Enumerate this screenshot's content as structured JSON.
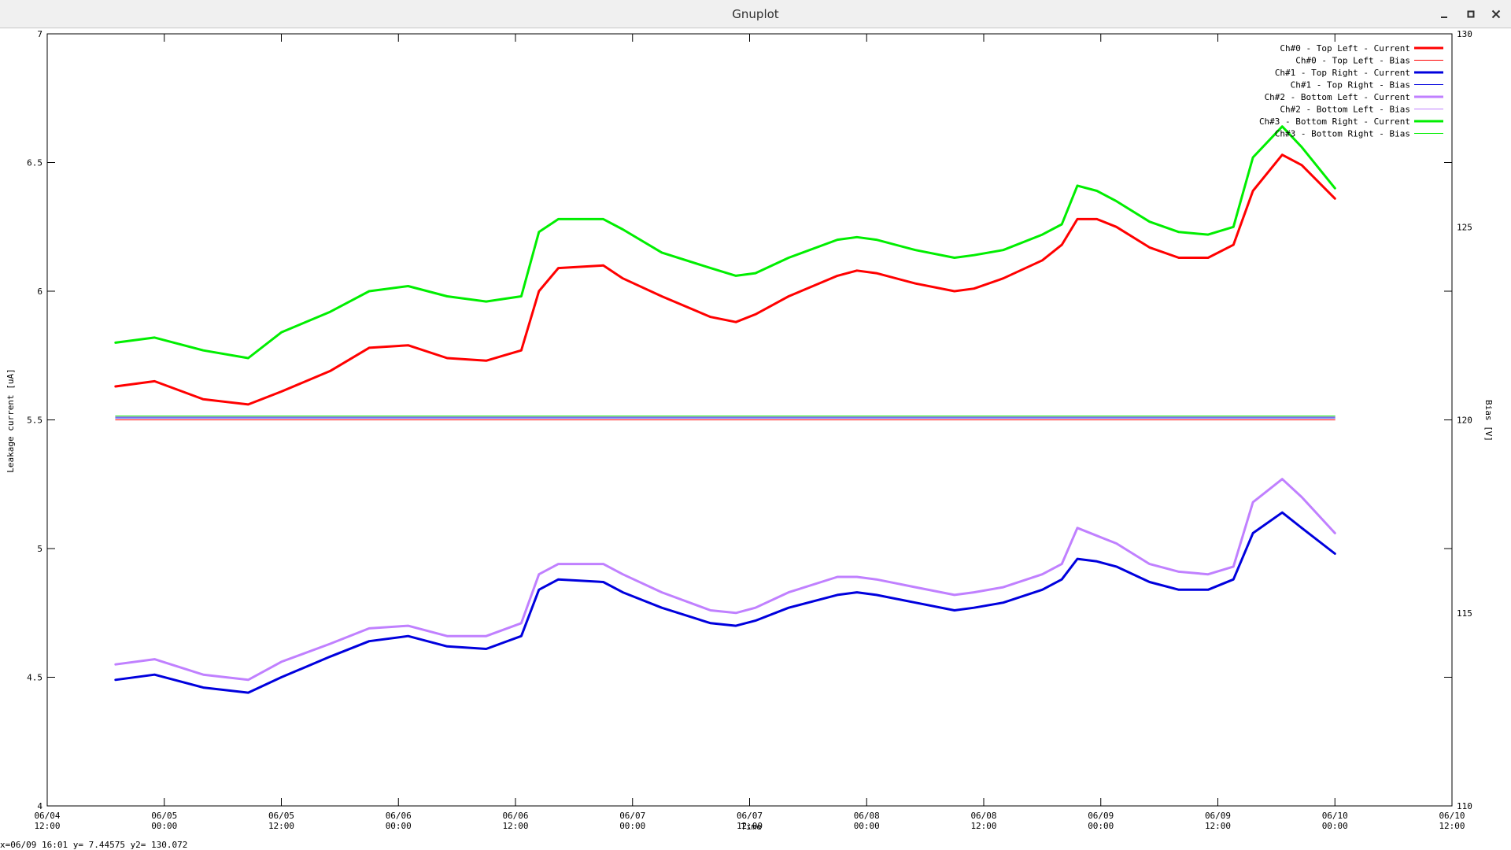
{
  "window": {
    "title": "Gnuplot",
    "minimize_icon": "minimize-icon",
    "maximize_icon": "maximize-icon",
    "close_icon": "close-icon"
  },
  "status": "x=06/09 16:01 y= 7.44575 y2= 130.072",
  "chart_data": {
    "type": "line",
    "xlabel": "Time",
    "ylabel": "Leakage current [uA]",
    "y2label": "Bias [V]",
    "xlim": [
      0,
      72
    ],
    "x_unit_note": "hours",
    "ylim": [
      4,
      7
    ],
    "y2lim": [
      110,
      130
    ],
    "grid": false,
    "legend_position": "top-right",
    "x_ticks": [
      {
        "x": 0,
        "label": [
          "06/04",
          "12:00"
        ]
      },
      {
        "x": 6,
        "label": [
          "06/05",
          "00:00"
        ]
      },
      {
        "x": 12,
        "label": [
          "06/05",
          "12:00"
        ]
      },
      {
        "x": 18,
        "label": [
          "06/06",
          "00:00"
        ]
      },
      {
        "x": 24,
        "label": [
          "06/06",
          "12:00"
        ]
      },
      {
        "x": 30,
        "label": [
          "06/07",
          "00:00"
        ]
      },
      {
        "x": 36,
        "label": [
          "06/07",
          "12:00"
        ]
      },
      {
        "x": 42,
        "label": [
          "06/08",
          "00:00"
        ]
      },
      {
        "x": 48,
        "label": [
          "06/08",
          "12:00"
        ]
      },
      {
        "x": 54,
        "label": [
          "06/09",
          "00:00"
        ]
      },
      {
        "x": 60,
        "label": [
          "06/09",
          "12:00"
        ]
      },
      {
        "x": 66,
        "label": [
          "06/10",
          "00:00"
        ]
      },
      {
        "x": 72,
        "label": [
          "06/10",
          "12:00"
        ]
      }
    ],
    "y_ticks": [
      {
        "v": 4,
        "label": "4"
      },
      {
        "v": 4.5,
        "label": "4.5"
      },
      {
        "v": 5,
        "label": "5"
      },
      {
        "v": 5.5,
        "label": "5.5"
      },
      {
        "v": 6,
        "label": "6"
      },
      {
        "v": 6.5,
        "label": "6.5"
      },
      {
        "v": 7,
        "label": "7"
      }
    ],
    "y2_ticks": [
      {
        "v": 110,
        "label": "110"
      },
      {
        "v": 115,
        "label": "115"
      },
      {
        "v": 120,
        "label": "120"
      },
      {
        "v": 125,
        "label": "125"
      },
      {
        "v": 130,
        "label": "130"
      }
    ],
    "series": [
      {
        "name": "Ch#0 - Top Left - Current",
        "color": "#ff0000",
        "width": 3,
        "axis": "y",
        "x": [
          3.5,
          5.5,
          8.0,
          10.3,
          12.0,
          14.5,
          16.5,
          18.5,
          20.5,
          22.5,
          24.3,
          25.2,
          26.2,
          28.5,
          29.5,
          31.5,
          34.0,
          35.3,
          36.3,
          38.0,
          40.5,
          41.5,
          42.5,
          44.5,
          46.5,
          47.5,
          49.0,
          51.0,
          52.0,
          52.8,
          53.8,
          54.8,
          56.5,
          58.0,
          59.5,
          60.8,
          61.8,
          63.3,
          64.3,
          66.0
        ],
        "y": [
          5.63,
          5.65,
          5.58,
          5.56,
          5.61,
          5.69,
          5.78,
          5.79,
          5.74,
          5.73,
          5.77,
          6.0,
          6.09,
          6.1,
          6.05,
          5.98,
          5.9,
          5.88,
          5.91,
          5.98,
          6.06,
          6.08,
          6.07,
          6.03,
          6.0,
          6.01,
          6.05,
          6.12,
          6.18,
          6.28,
          6.28,
          6.25,
          6.17,
          6.13,
          6.13,
          6.18,
          6.39,
          6.53,
          6.49,
          6.36
        ]
      },
      {
        "name": "Ch#0 - Top Left - Bias",
        "color": "#ff0000",
        "width": 1,
        "axis": "y2",
        "x": [
          3.5,
          66.0
        ],
        "y": [
          120.0,
          120.0
        ]
      },
      {
        "name": "Ch#1 - Top Right - Current",
        "color": "#0000dd",
        "width": 3,
        "axis": "y",
        "x": [
          3.5,
          5.5,
          8.0,
          10.3,
          12.0,
          14.5,
          16.5,
          18.5,
          20.5,
          22.5,
          24.3,
          25.2,
          26.2,
          28.5,
          29.5,
          31.5,
          34.0,
          35.3,
          36.3,
          38.0,
          40.5,
          41.5,
          42.5,
          44.5,
          46.5,
          47.5,
          49.0,
          51.0,
          52.0,
          52.8,
          53.8,
          54.8,
          56.5,
          58.0,
          59.5,
          60.8,
          61.8,
          63.3,
          64.3,
          66.0
        ],
        "y": [
          4.49,
          4.51,
          4.46,
          4.44,
          4.5,
          4.58,
          4.64,
          4.66,
          4.62,
          4.61,
          4.66,
          4.84,
          4.88,
          4.87,
          4.83,
          4.77,
          4.71,
          4.7,
          4.72,
          4.77,
          4.82,
          4.83,
          4.82,
          4.79,
          4.76,
          4.77,
          4.79,
          4.84,
          4.88,
          4.96,
          4.95,
          4.93,
          4.87,
          4.84,
          4.84,
          4.88,
          5.06,
          5.14,
          5.08,
          4.98
        ]
      },
      {
        "name": "Ch#1 - Top Right - Bias",
        "color": "#0000dd",
        "width": 1,
        "axis": "y2",
        "x": [
          3.5,
          66.0
        ],
        "y": [
          120.05,
          120.05
        ]
      },
      {
        "name": "Ch#2 - Bottom Left - Current",
        "color": "#c080ff",
        "width": 3,
        "axis": "y",
        "x": [
          3.5,
          5.5,
          8.0,
          10.3,
          12.0,
          14.5,
          16.5,
          18.5,
          20.5,
          22.5,
          24.3,
          25.2,
          26.2,
          28.5,
          29.5,
          31.5,
          34.0,
          35.3,
          36.3,
          38.0,
          40.5,
          41.5,
          42.5,
          44.5,
          46.5,
          47.5,
          49.0,
          51.0,
          52.0,
          52.8,
          53.8,
          54.8,
          56.5,
          58.0,
          59.5,
          60.8,
          61.8,
          63.3,
          64.3,
          66.0
        ],
        "y": [
          4.55,
          4.57,
          4.51,
          4.49,
          4.56,
          4.63,
          4.69,
          4.7,
          4.66,
          4.66,
          4.71,
          4.9,
          4.94,
          4.94,
          4.9,
          4.83,
          4.76,
          4.75,
          4.77,
          4.83,
          4.89,
          4.89,
          4.88,
          4.85,
          4.82,
          4.83,
          4.85,
          4.9,
          4.94,
          5.08,
          5.05,
          5.02,
          4.94,
          4.91,
          4.9,
          4.93,
          5.18,
          5.27,
          5.2,
          5.06
        ]
      },
      {
        "name": "Ch#2 - Bottom Left - Bias",
        "color": "#c080ff",
        "width": 1,
        "axis": "y2",
        "x": [
          3.5,
          66.0
        ],
        "y": [
          120.08,
          120.08
        ]
      },
      {
        "name": "Ch#3 - Bottom Right - Current",
        "color": "#00ee00",
        "width": 3,
        "axis": "y",
        "x": [
          3.5,
          5.5,
          8.0,
          10.3,
          12.0,
          14.5,
          16.5,
          18.5,
          20.5,
          22.5,
          24.3,
          25.2,
          26.2,
          28.5,
          29.5,
          31.5,
          34.0,
          35.3,
          36.3,
          38.0,
          40.5,
          41.5,
          42.5,
          44.5,
          46.5,
          47.5,
          49.0,
          51.0,
          52.0,
          52.8,
          53.8,
          54.8,
          56.5,
          58.0,
          59.5,
          60.8,
          61.8,
          63.3,
          64.3,
          66.0
        ],
        "y": [
          5.8,
          5.82,
          5.77,
          5.74,
          5.84,
          5.92,
          6.0,
          6.02,
          5.98,
          5.96,
          5.98,
          6.23,
          6.28,
          6.28,
          6.24,
          6.15,
          6.09,
          6.06,
          6.07,
          6.13,
          6.2,
          6.21,
          6.2,
          6.16,
          6.13,
          6.14,
          6.16,
          6.22,
          6.26,
          6.41,
          6.39,
          6.35,
          6.27,
          6.23,
          6.22,
          6.25,
          6.52,
          6.64,
          6.56,
          6.4
        ]
      },
      {
        "name": "Ch#3 - Bottom Right - Bias",
        "color": "#00ee00",
        "width": 1,
        "axis": "y2",
        "x": [
          3.5,
          66.0
        ],
        "y": [
          120.1,
          120.1
        ]
      }
    ]
  }
}
